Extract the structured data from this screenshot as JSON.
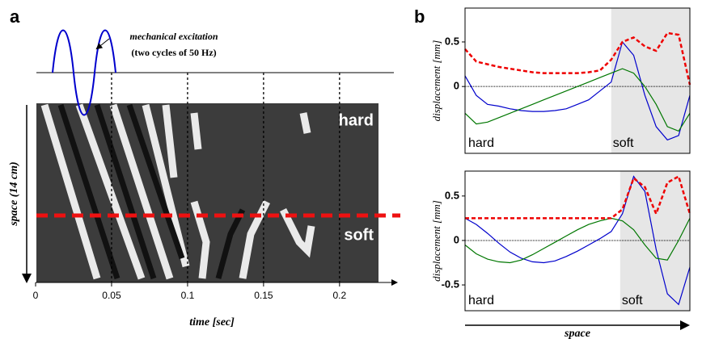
{
  "chart_data": [
    {
      "type": "spatiotemporal-image",
      "panel_label": "a",
      "annotations": [
        "mechanical excitation",
        "(two cycles of 50 Hz)",
        "hard",
        "soft"
      ],
      "x_label": "time [sec]",
      "y_label": "space (14 cm)",
      "xlim": [
        0,
        0.24
      ],
      "xticks": [
        0,
        0.05,
        0.1,
        0.15,
        0.2
      ]
    },
    {
      "type": "line",
      "panel_label": "b",
      "y_label": "displacement [mm]",
      "region_labels": [
        "hard",
        "soft"
      ],
      "xlim": [
        0,
        1
      ],
      "soft_region": [
        0.65,
        1
      ],
      "x": [
        0,
        0.05,
        0.1,
        0.15,
        0.2,
        0.25,
        0.3,
        0.35,
        0.4,
        0.45,
        0.5,
        0.55,
        0.6,
        0.65,
        0.7,
        0.75,
        0.8,
        0.85,
        0.9,
        0.95,
        1
      ],
      "ylim": [
        -0.75,
        0.88
      ],
      "yticks": [
        0,
        0.5
      ],
      "series": [
        {
          "color": "#0000cc",
          "values": [
            0.12,
            -0.1,
            -0.2,
            -0.22,
            -0.25,
            -0.27,
            -0.28,
            -0.28,
            -0.27,
            -0.25,
            -0.2,
            -0.15,
            -0.05,
            0.05,
            0.5,
            0.35,
            -0.1,
            -0.45,
            -0.6,
            -0.55,
            -0.1
          ]
        },
        {
          "color": "#007700",
          "values": [
            -0.3,
            -0.42,
            -0.4,
            -0.35,
            -0.3,
            -0.25,
            -0.2,
            -0.15,
            -0.1,
            -0.05,
            0.0,
            0.05,
            0.1,
            0.15,
            0.2,
            0.15,
            0.0,
            -0.2,
            -0.45,
            -0.5,
            -0.3
          ]
        },
        {
          "color": "#ee0000",
          "dashed": true,
          "values": [
            0.42,
            0.28,
            0.25,
            0.22,
            0.2,
            0.18,
            0.16,
            0.15,
            0.15,
            0.15,
            0.15,
            0.16,
            0.18,
            0.3,
            0.5,
            0.55,
            0.45,
            0.4,
            0.6,
            0.58,
            0.02
          ]
        }
      ]
    },
    {
      "type": "line",
      "y_label": "displacement [mm]",
      "region_labels": [
        "hard",
        "soft"
      ],
      "x_label": "space",
      "xlim": [
        0,
        1
      ],
      "soft_region": [
        0.69,
        1
      ],
      "x": [
        0,
        0.05,
        0.1,
        0.15,
        0.2,
        0.25,
        0.3,
        0.35,
        0.4,
        0.45,
        0.5,
        0.55,
        0.6,
        0.65,
        0.7,
        0.75,
        0.8,
        0.85,
        0.9,
        0.95,
        1
      ],
      "ylim": [
        -0.79,
        0.78
      ],
      "yticks": [
        -0.5,
        0,
        0.5
      ],
      "series": [
        {
          "color": "#0000cc",
          "values": [
            0.25,
            0.18,
            0.08,
            -0.03,
            -0.13,
            -0.2,
            -0.24,
            -0.25,
            -0.23,
            -0.18,
            -0.12,
            -0.05,
            0.02,
            0.1,
            0.3,
            0.72,
            0.55,
            -0.1,
            -0.6,
            -0.72,
            -0.3
          ]
        },
        {
          "color": "#007700",
          "values": [
            -0.05,
            -0.15,
            -0.21,
            -0.24,
            -0.25,
            -0.22,
            -0.16,
            -0.09,
            -0.02,
            0.05,
            0.12,
            0.18,
            0.22,
            0.25,
            0.22,
            0.12,
            -0.05,
            -0.2,
            -0.22,
            0.0,
            0.25
          ]
        },
        {
          "color": "#ee0000",
          "dashed": true,
          "values": [
            0.25,
            0.25,
            0.25,
            0.25,
            0.25,
            0.25,
            0.25,
            0.25,
            0.25,
            0.25,
            0.25,
            0.25,
            0.25,
            0.25,
            0.35,
            0.7,
            0.6,
            0.3,
            0.65,
            0.72,
            0.3
          ]
        }
      ]
    }
  ]
}
